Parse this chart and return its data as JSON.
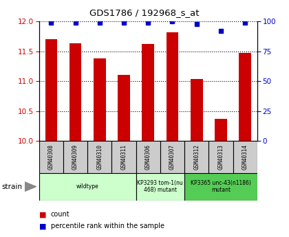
{
  "title": "GDS1786 / 192968_s_at",
  "samples": [
    "GSM40308",
    "GSM40309",
    "GSM40310",
    "GSM40311",
    "GSM40306",
    "GSM40307",
    "GSM40312",
    "GSM40313",
    "GSM40314"
  ],
  "counts": [
    11.7,
    11.63,
    11.38,
    11.1,
    11.62,
    11.82,
    11.04,
    10.37,
    11.47
  ],
  "percentiles": [
    99,
    99,
    99,
    99,
    99,
    100,
    98,
    92,
    99
  ],
  "ylim_left": [
    10,
    12
  ],
  "ylim_right": [
    0,
    100
  ],
  "yticks_left": [
    10,
    10.5,
    11,
    11.5,
    12
  ],
  "yticks_right": [
    0,
    25,
    50,
    75,
    100
  ],
  "bar_color": "#cc0000",
  "dot_color": "#0000cc",
  "strain_groups": [
    {
      "label": "wildtype",
      "start": 0,
      "end": 4,
      "color": "#ccffcc"
    },
    {
      "label": "KP3293 tom-1(nu\n468) mutant",
      "start": 4,
      "end": 6,
      "color": "#ccffcc"
    },
    {
      "label": "KP3365 unc-43(n1186)\nmutant",
      "start": 6,
      "end": 9,
      "color": "#55cc55"
    }
  ],
  "legend_items": [
    {
      "label": "count",
      "color": "#cc0000"
    },
    {
      "label": "percentile rank within the sample",
      "color": "#0000cc"
    }
  ],
  "tick_label_color_left": "#cc0000",
  "tick_label_color_right": "#0000cc",
  "bar_width": 0.5,
  "sample_box_color": "#cccccc"
}
